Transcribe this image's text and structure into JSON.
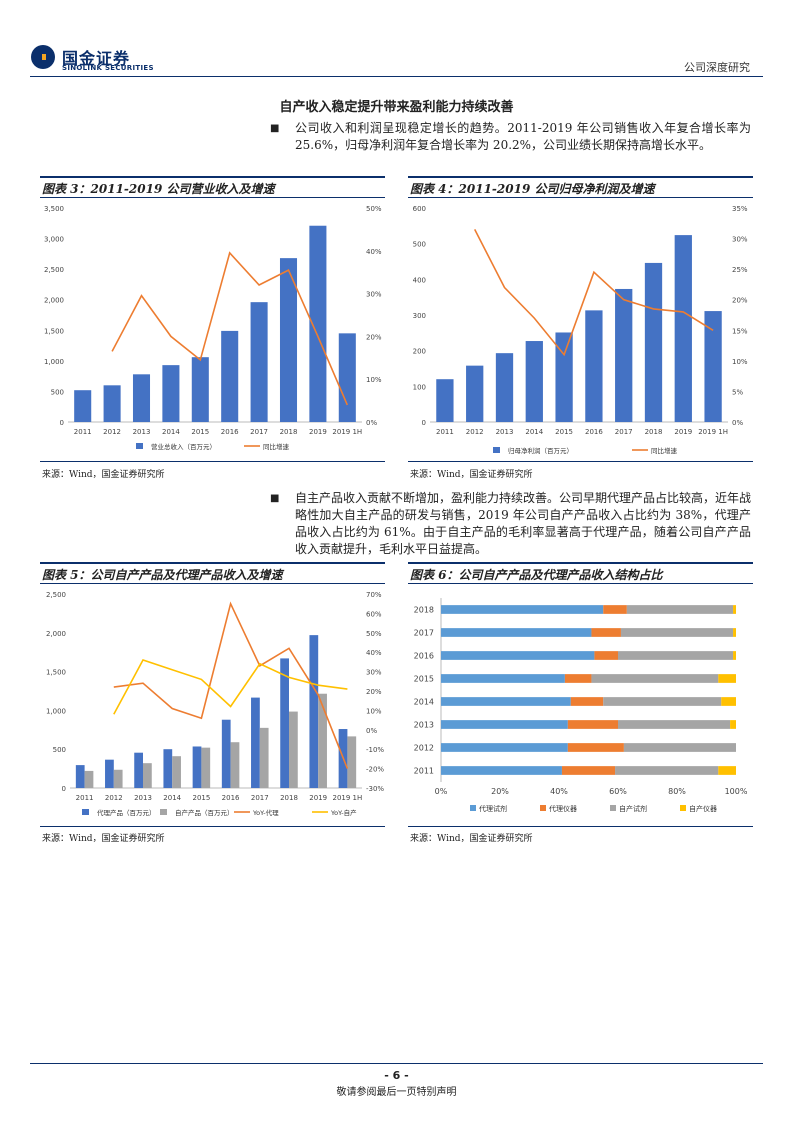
{
  "header": {
    "logo_cn": "国金证券",
    "logo_en": "SINOLINK SECURITIES",
    "right_label": "公司深度研究"
  },
  "section": {
    "title": "自产收入稳定提升带来盈利能力持续改善",
    "para1": "公司收入和利润呈现稳定增长的趋势。2011-2019 年公司销售收入年复合增长率为 25.6%，归母净利润年复合增长率为 20.2%，公司业绩长期保持高增长水平。",
    "para2": "自主产品收入贡献不断增加，盈利能力持续改善。公司早期代理产品占比较高，近年战略性加大自主产品的研发与销售，2019 年公司自产产品收入占比约为 38%，代理产品收入占比约为 61%。由于自主产品的毛利率显著高于代理产品，随着公司自产产品收入贡献提升，毛利水平日益提高。"
  },
  "figures": {
    "fig3_title": "图表 3：2011-2019 公司营业收入及增速",
    "fig4_title": "图表 4：2011-2019 公司归母净利润及增速",
    "fig5_title": "图表 5：公司自产产品及代理产品收入及增速",
    "fig6_title": "图表 6：公司自产产品及代理产品收入结构占比",
    "source": "来源：Wind，国金证券研究所"
  },
  "chart_data": [
    {
      "id": "fig3",
      "type": "bar+line",
      "categories": [
        "2011",
        "2012",
        "2013",
        "2014",
        "2015",
        "2016",
        "2017",
        "2018",
        "2019",
        "2019 1H"
      ],
      "series": [
        {
          "name": "营业总收入（百万元）",
          "type": "bar",
          "axis": "left",
          "color": "#4472c4",
          "values": [
            520,
            600,
            780,
            930,
            1060,
            1490,
            1960,
            2680,
            3210,
            1450
          ]
        },
        {
          "name": "同比增速",
          "type": "line",
          "axis": "right",
          "color": "#ed7d31",
          "values": [
            null,
            16.5,
            29.5,
            20,
            14.5,
            39.5,
            32,
            35.5,
            20,
            4
          ]
        }
      ],
      "left_ticks": [
        "0",
        "500",
        "1,000",
        "1,500",
        "2,000",
        "2,500",
        "3,000",
        "3,500"
      ],
      "right_ticks": [
        "0%",
        "10%",
        "20%",
        "30%",
        "40%",
        "50%"
      ],
      "ylim": [
        0,
        3500
      ],
      "y2lim": [
        0,
        50
      ],
      "legend": "bottom"
    },
    {
      "id": "fig4",
      "type": "bar+line",
      "categories": [
        "2011",
        "2012",
        "2013",
        "2014",
        "2015",
        "2016",
        "2017",
        "2018",
        "2019",
        "2019 1H"
      ],
      "series": [
        {
          "name": "归母净利润（百万元）",
          "type": "bar",
          "axis": "left",
          "color": "#4472c4",
          "values": [
            120,
            158,
            193,
            227,
            251,
            313,
            373,
            446,
            524,
            311
          ]
        },
        {
          "name": "同比增速",
          "type": "line",
          "axis": "right",
          "color": "#ed7d31",
          "values": [
            null,
            31.5,
            22,
            17,
            11,
            24.5,
            20,
            18.5,
            18,
            15
          ]
        }
      ],
      "left_ticks": [
        "0",
        "100",
        "200",
        "300",
        "400",
        "500",
        "600"
      ],
      "right_ticks": [
        "0%",
        "5%",
        "10%",
        "15%",
        "20%",
        "25%",
        "30%",
        "35%"
      ],
      "ylim": [
        0,
        600
      ],
      "y2lim": [
        0,
        35
      ],
      "legend": "bottom"
    },
    {
      "id": "fig5",
      "type": "bar+line",
      "categories": [
        "2011",
        "2012",
        "2013",
        "2014",
        "2015",
        "2016",
        "2017",
        "2018",
        "2019",
        "2019 1H"
      ],
      "series": [
        {
          "name": "代理产品（百万元）",
          "type": "bar",
          "axis": "left",
          "color": "#4472c4",
          "values": [
            295,
            365,
            455,
            500,
            535,
            880,
            1165,
            1670,
            1970,
            760
          ]
        },
        {
          "name": "自产产品（百万元）",
          "type": "bar",
          "axis": "left",
          "color": "#a5a5a5",
          "values": [
            220,
            235,
            320,
            410,
            520,
            590,
            775,
            985,
            1215,
            665
          ]
        },
        {
          "name": "YoY-代理",
          "type": "line",
          "axis": "right",
          "color": "#ed7d31",
          "values": [
            null,
            22,
            24,
            11,
            6,
            65,
            33,
            42,
            18,
            -20
          ]
        },
        {
          "name": "YoY-自产",
          "type": "line",
          "axis": "right",
          "color": "#ffc000",
          "values": [
            null,
            8,
            36,
            31,
            26,
            12,
            34,
            27,
            23,
            21
          ]
        }
      ],
      "left_ticks": [
        "0",
        "500",
        "1,000",
        "1,500",
        "2,000",
        "2,500"
      ],
      "right_ticks": [
        "-30%",
        "-20%",
        "-10%",
        "0%",
        "10%",
        "20%",
        "30%",
        "40%",
        "50%",
        "60%",
        "70%"
      ],
      "ylim": [
        0,
        2500
      ],
      "y2lim": [
        -30,
        70
      ],
      "legend": "bottom"
    },
    {
      "id": "fig6",
      "type": "stacked-barh",
      "categories": [
        "2018",
        "2017",
        "2016",
        "2015",
        "2014",
        "2013",
        "2012",
        "2011"
      ],
      "series": [
        {
          "name": "代理试剂",
          "color": "#5b9bd5",
          "values": [
            55,
            51,
            52,
            42,
            44,
            43,
            43,
            41
          ]
        },
        {
          "name": "代理仪器",
          "color": "#ed7d31",
          "values": [
            8,
            10,
            8,
            9,
            11,
            17,
            19,
            18
          ]
        },
        {
          "name": "自产试剂",
          "color": "#a5a5a5",
          "values": [
            36,
            38,
            39,
            43,
            40,
            38,
            38,
            35
          ]
        },
        {
          "name": "自产仪器",
          "color": "#ffc000",
          "values": [
            1,
            1,
            1,
            6,
            5,
            2,
            0,
            6
          ]
        }
      ],
      "x_ticks": [
        "0%",
        "20%",
        "40%",
        "60%",
        "80%",
        "100%"
      ],
      "xlim": [
        0,
        100
      ],
      "legend": "bottom"
    }
  ],
  "footer": {
    "page": "- 6 -",
    "disclaimer": "敬请参阅最后一页特别声明"
  }
}
